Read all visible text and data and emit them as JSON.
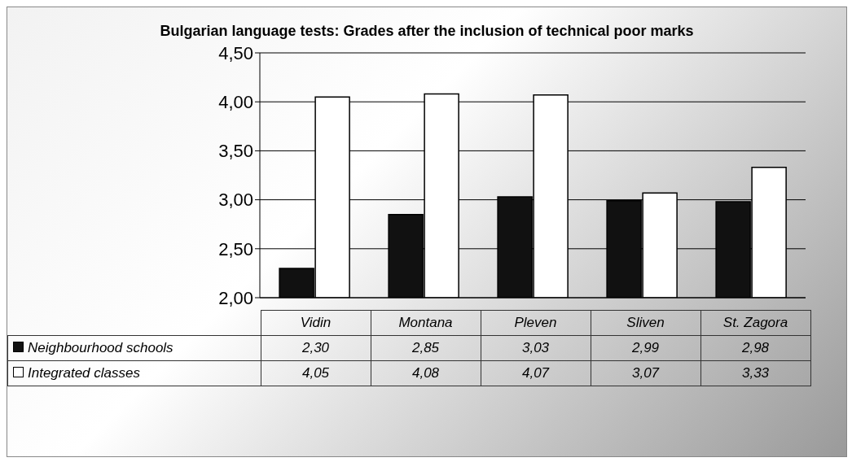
{
  "chart_data": {
    "type": "bar",
    "title": "Bulgarian language tests: Grades after the inclusion of technical poor marks",
    "categories": [
      "Vidin",
      "Montana",
      "Pleven",
      "Sliven",
      "St. Zagora"
    ],
    "series": [
      {
        "name": "Neighbourhood schools",
        "color": "#111111",
        "values": [
          2.3,
          2.85,
          3.03,
          2.99,
          2.98
        ],
        "value_labels": [
          "2,30",
          "2,85",
          "3,03",
          "2,99",
          "2,98"
        ]
      },
      {
        "name": "Integrated classes",
        "color": "#ffffff",
        "values": [
          4.05,
          4.08,
          4.07,
          3.07,
          3.33
        ],
        "value_labels": [
          "4,05",
          "4,08",
          "4,07",
          "3,07",
          "3,33"
        ]
      }
    ],
    "ylim": [
      2,
      4.5
    ],
    "yticks": [
      {
        "value": 2,
        "label": "2,00"
      },
      {
        "value": 2.5,
        "label": "2,50"
      },
      {
        "value": 3,
        "label": "3,00"
      },
      {
        "value": 3.5,
        "label": "3,50"
      },
      {
        "value": 4,
        "label": "4,00"
      },
      {
        "value": 4.5,
        "label": "4,50"
      }
    ],
    "grid": "y",
    "legend": "bottom"
  }
}
